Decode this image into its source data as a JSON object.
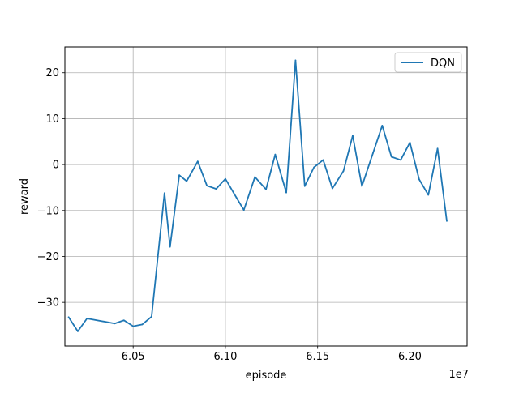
{
  "chart_data": {
    "type": "line",
    "title": "",
    "xlabel": "episode",
    "ylabel": "reward",
    "x_offset_label": "1e7",
    "xlim": [
      60130000,
      62310000
    ],
    "ylim": [
      -39.5,
      25.6
    ],
    "x_ticks": [
      {
        "value": 60500000,
        "label": "6.05"
      },
      {
        "value": 61000000,
        "label": "6.10"
      },
      {
        "value": 61500000,
        "label": "6.15"
      },
      {
        "value": 62000000,
        "label": "6.20"
      }
    ],
    "y_ticks": [
      {
        "value": -30,
        "label": "−30"
      },
      {
        "value": -20,
        "label": "−20"
      },
      {
        "value": -10,
        "label": "−10"
      },
      {
        "value": 0,
        "label": "0"
      },
      {
        "value": 10,
        "label": "10"
      },
      {
        "value": 20,
        "label": "20"
      }
    ],
    "grid": true,
    "legend_position": "top-right",
    "series": [
      {
        "name": "DQN",
        "color": "#1f77b4",
        "x": [
          60150000,
          60200000,
          60250000,
          60400000,
          60450000,
          60500000,
          60550000,
          60600000,
          60670000,
          60700000,
          60750000,
          60790000,
          60850000,
          60900000,
          60950000,
          61000000,
          61060000,
          61100000,
          61160000,
          61220000,
          61270000,
          61330000,
          61380000,
          61430000,
          61480000,
          61530000,
          61580000,
          61640000,
          61690000,
          61740000,
          61800000,
          61850000,
          61900000,
          61950000,
          62000000,
          62050000,
          62100000,
          62150000,
          62200000
        ],
        "y": [
          -33.2,
          -36.3,
          -33.5,
          -34.6,
          -33.9,
          -35.2,
          -34.8,
          -33.1,
          -6.2,
          -17.9,
          -2.3,
          -3.6,
          0.7,
          -4.6,
          -5.3,
          -3.1,
          -7.2,
          -9.9,
          -2.7,
          -5.4,
          2.2,
          -6.1,
          22.7,
          -4.7,
          -0.6,
          1.0,
          -5.2,
          -1.4,
          6.3,
          -4.7,
          2.5,
          8.5,
          1.7,
          1.0,
          4.8,
          -3.2,
          -6.6,
          3.5,
          -12.3
        ]
      }
    ]
  }
}
